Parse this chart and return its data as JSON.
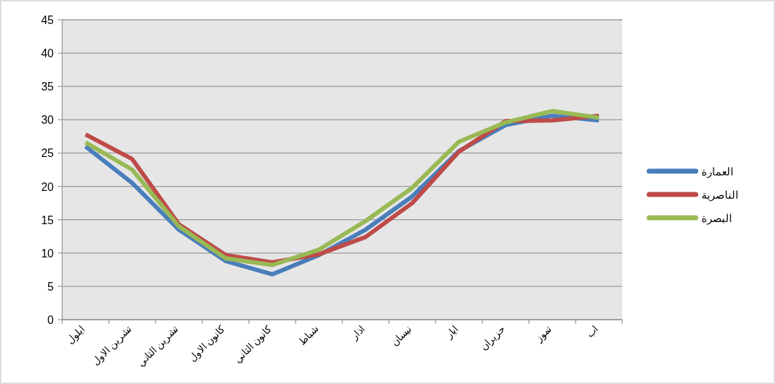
{
  "chart_data": {
    "type": "line",
    "categories": [
      "ايلول",
      "تشرين الاول",
      "تشرين الثاني",
      "كانون الاول",
      "كانون الثاني",
      "شباط",
      "اذار",
      "نيسان",
      "ايار",
      "حزيران",
      "تموز",
      "اب"
    ],
    "series": [
      {
        "name": "العمارة",
        "color": "#4a7ebb",
        "values": [
          26,
          20.5,
          13.5,
          8.8,
          6.8,
          9.7,
          13.5,
          18.5,
          25.3,
          29.2,
          30.6,
          29.9
        ]
      },
      {
        "name": "الناصرية",
        "color": "#be4b48",
        "values": [
          27.8,
          24.1,
          14.3,
          9.7,
          8.6,
          9.8,
          12.4,
          17.5,
          25.2,
          29.8,
          29.9,
          30.6
        ]
      },
      {
        "name": "البصرة",
        "color": "#98b954",
        "values": [
          26.6,
          22.5,
          14.0,
          9.2,
          8.2,
          10.5,
          14.8,
          19.8,
          26.7,
          29.6,
          31.3,
          30.3
        ]
      }
    ],
    "ylim": [
      0,
      45
    ],
    "yticks": [
      0,
      5,
      10,
      15,
      20,
      25,
      30,
      35,
      40,
      45
    ],
    "grid": "y",
    "legend": "right",
    "marker": "none",
    "line_style": "solid"
  }
}
